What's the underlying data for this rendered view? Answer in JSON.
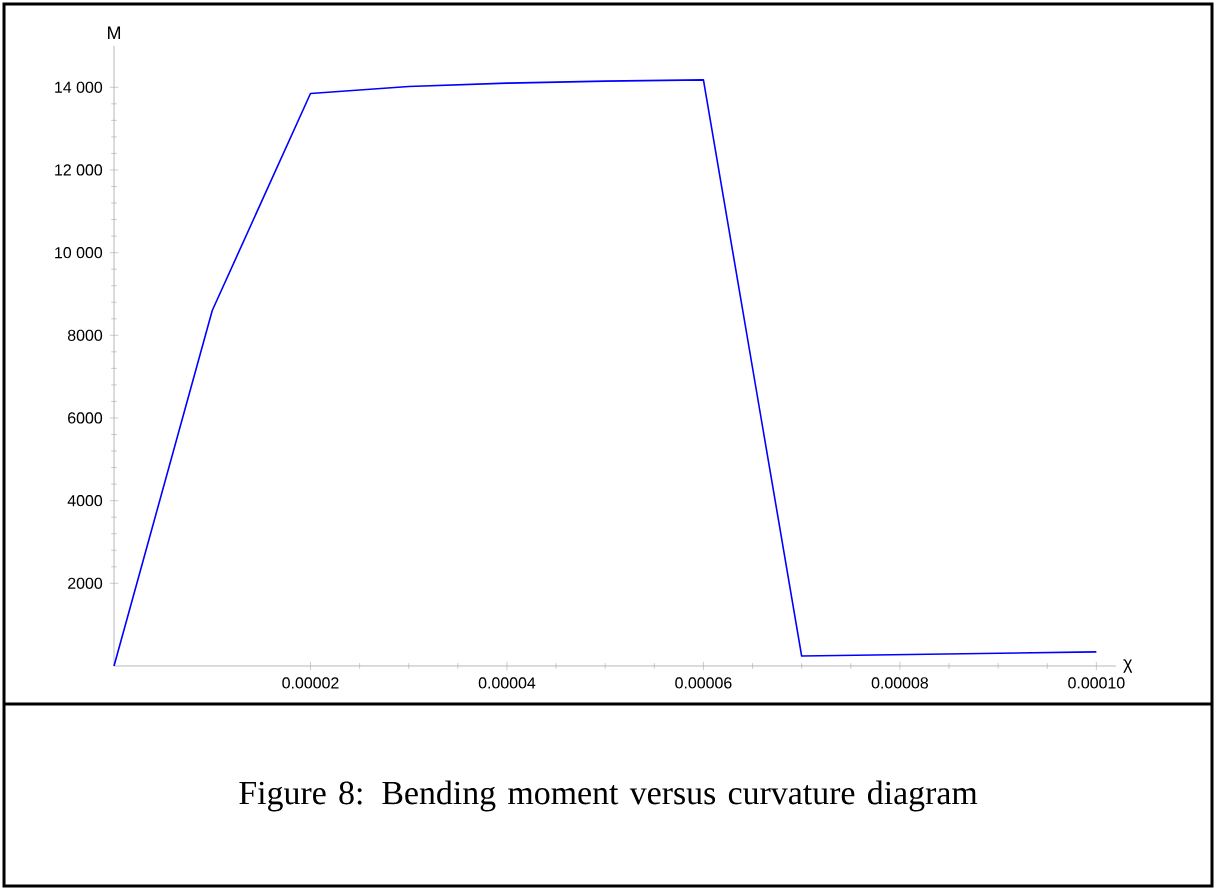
{
  "chart_data": {
    "type": "line",
    "xlabel": "χ",
    "ylabel": "M",
    "annotations": [
      "Figure 8: Bending moment versus curvature diagram"
    ],
    "x": [
      0,
      1e-05,
      2e-05,
      3e-05,
      4e-05,
      5e-05,
      6e-05,
      7e-05,
      0.0001
    ],
    "series": [
      {
        "color": "#0000ff",
        "values": [
          0,
          8600,
          13850,
          14020,
          14100,
          14150,
          14180,
          240,
          340
        ]
      }
    ],
    "xlim": [
      0,
      0.000102
    ],
    "ylim": [
      0,
      15000
    ],
    "xticks": [
      {
        "value": 2e-05,
        "label": "0.00002"
      },
      {
        "value": 4e-05,
        "label": "0.00004"
      },
      {
        "value": 6e-05,
        "label": "0.00006"
      },
      {
        "value": 8e-05,
        "label": "0.00008"
      },
      {
        "value": 0.0001,
        "label": "0.00010"
      }
    ],
    "yticks": [
      2000,
      4000,
      6000,
      8000,
      {
        "value": 10000,
        "label": "10 000"
      },
      {
        "value": 12000,
        "label": "12 000"
      },
      {
        "value": 14000,
        "label": "14 000"
      }
    ],
    "marker": "none",
    "line_style": "solid",
    "grid": false
  }
}
